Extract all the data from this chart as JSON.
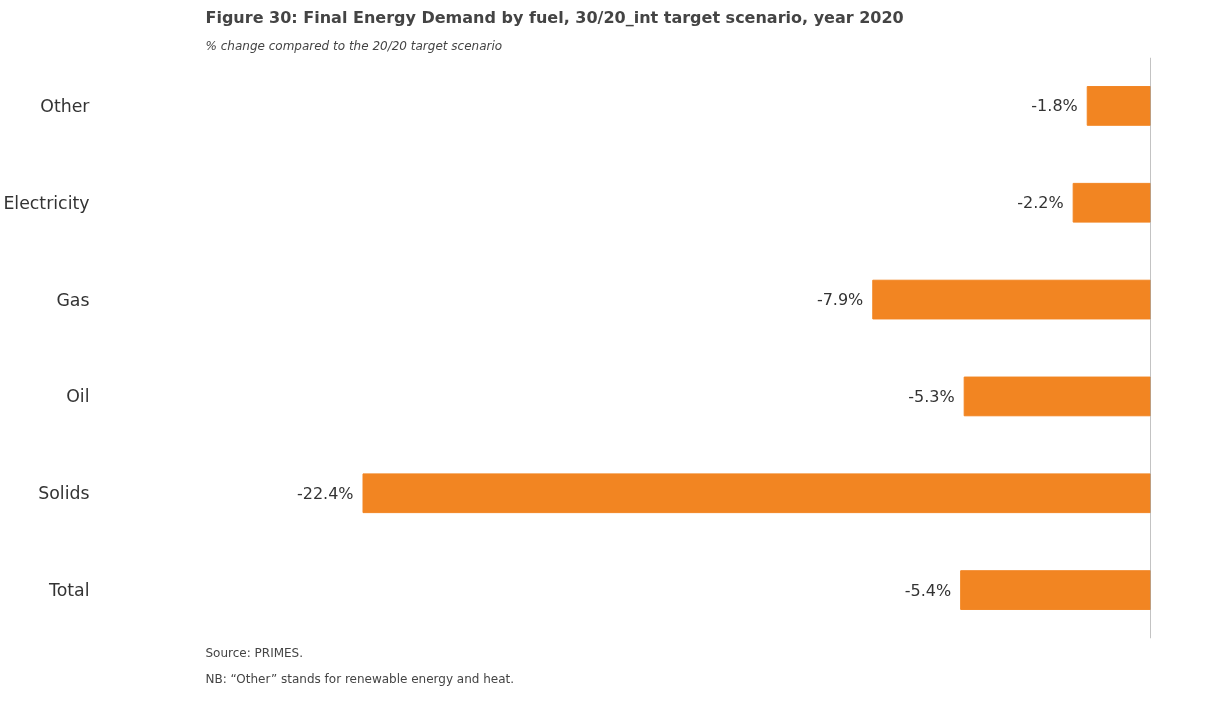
{
  "chart_data": {
    "type": "bar",
    "orientation": "horizontal",
    "title": "Figure 30:     Final Energy Demand by fuel, 30/20_int target scenario, year 2020",
    "subtitle": "% change compared to the 20/20 target scenario",
    "categories": [
      "Other",
      "Electricity",
      "Gas",
      "Oil",
      "Solids",
      "Total"
    ],
    "values": [
      -1.8,
      -2.2,
      -7.9,
      -5.3,
      -22.4,
      -5.4
    ],
    "value_labels": [
      "-1.8%",
      "-2.2%",
      "-7.9%",
      "-5.3%",
      "-22.4%",
      "-5.4%"
    ],
    "color": "#f28522",
    "grid": false,
    "annotations": [
      "Source:     PRIMES.",
      "NB:          “Other” stands for renewable energy and heat."
    ]
  }
}
